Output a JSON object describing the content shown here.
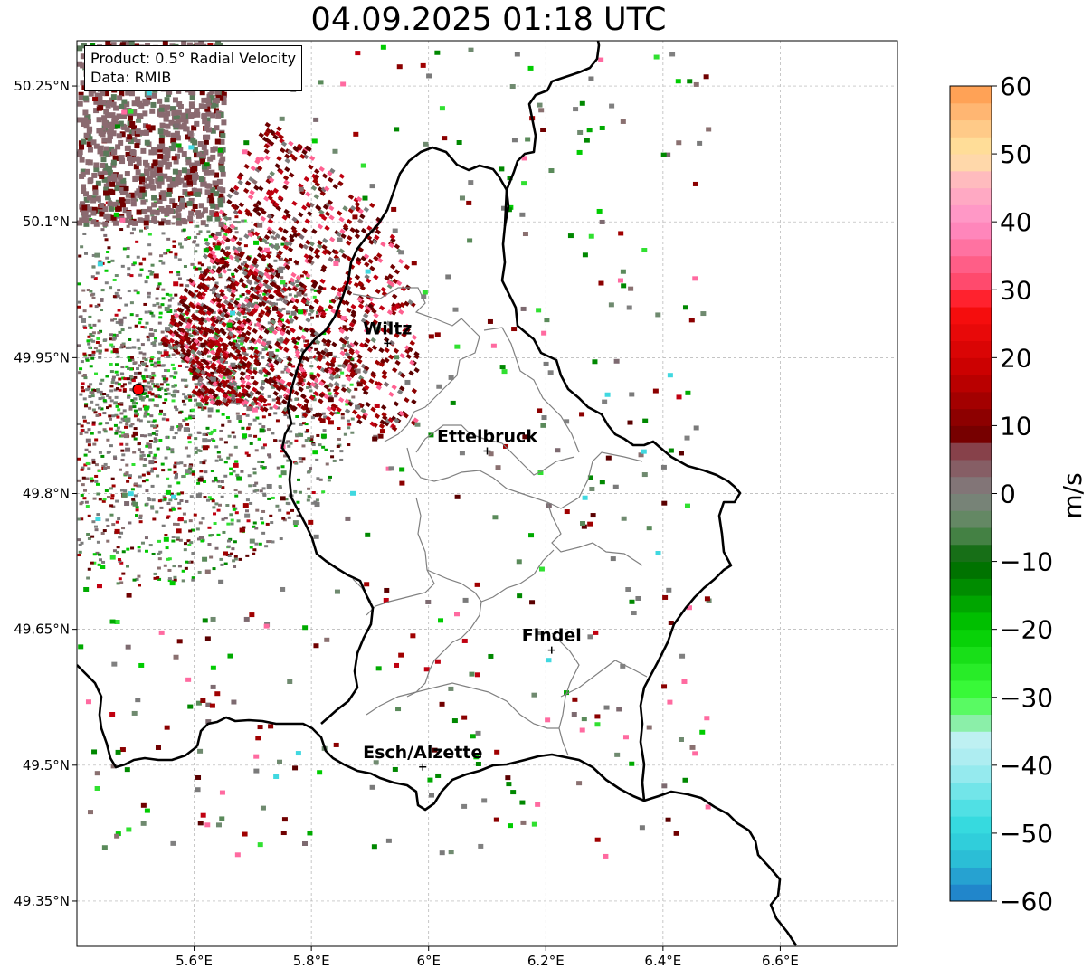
{
  "title": "04.09.2025 01:18 UTC",
  "info": {
    "product": "Product: 0.5° Radial Velocity",
    "source": "Data: RMIB"
  },
  "axes": {
    "lon_ticks": [
      "5.6°E",
      "5.8°E",
      "6°E",
      "6.2°E",
      "6.4°E",
      "6.6°E"
    ],
    "lat_ticks": [
      "50.25°N",
      "50.1°N",
      "49.95°N",
      "49.8°N",
      "49.65°N",
      "49.5°N",
      "49.35°N"
    ],
    "lon_range": [
      5.4,
      6.8
    ],
    "lat_range": [
      49.3,
      50.3
    ],
    "grid": true
  },
  "cities": [
    {
      "name": "Wiltz",
      "lon": 5.93,
      "lat": 49.966
    },
    {
      "name": "Ettelbruck",
      "lon": 6.1,
      "lat": 49.847
    },
    {
      "name": "Findel",
      "lon": 6.21,
      "lat": 49.627
    },
    {
      "name": "Esch/Alzette",
      "lon": 5.99,
      "lat": 49.498
    }
  ],
  "radar": {
    "lon": 5.505,
    "lat": 49.915,
    "color": "#ff0000"
  },
  "colorbar": {
    "label": "m/s",
    "min": -60,
    "max": 60,
    "ticks": [
      "60",
      "50",
      "40",
      "30",
      "20",
      "10",
      "0",
      "−10",
      "−20",
      "−30",
      "−40",
      "−50",
      "−60"
    ],
    "stops": [
      {
        "v": -60,
        "c": "#1f78c8"
      },
      {
        "v": -53,
        "c": "#2cc6d8"
      },
      {
        "v": -48,
        "c": "#38dde0"
      },
      {
        "v": -40,
        "c": "#a6ecf0"
      },
      {
        "v": -36,
        "c": "#c0f0f2"
      },
      {
        "v": -34,
        "c": "#90eeb0"
      },
      {
        "v": -30,
        "c": "#40ff40"
      },
      {
        "v": -20,
        "c": "#00cc00"
      },
      {
        "v": -10,
        "c": "#006600"
      },
      {
        "v": -5,
        "c": "#5a8a5a"
      },
      {
        "v": 0,
        "c": "#808080"
      },
      {
        "v": 6,
        "c": "#8a4a55"
      },
      {
        "v": 8,
        "c": "#700000"
      },
      {
        "v": 18,
        "c": "#c80000"
      },
      {
        "v": 28,
        "c": "#ff1010"
      },
      {
        "v": 30,
        "c": "#ff4060"
      },
      {
        "v": 40,
        "c": "#ff90c8"
      },
      {
        "v": 46,
        "c": "#ffb8c0"
      },
      {
        "v": 50,
        "c": "#ffe6a0"
      },
      {
        "v": 55,
        "c": "#ffc080"
      },
      {
        "v": 60,
        "c": "#ff9848"
      }
    ]
  }
}
